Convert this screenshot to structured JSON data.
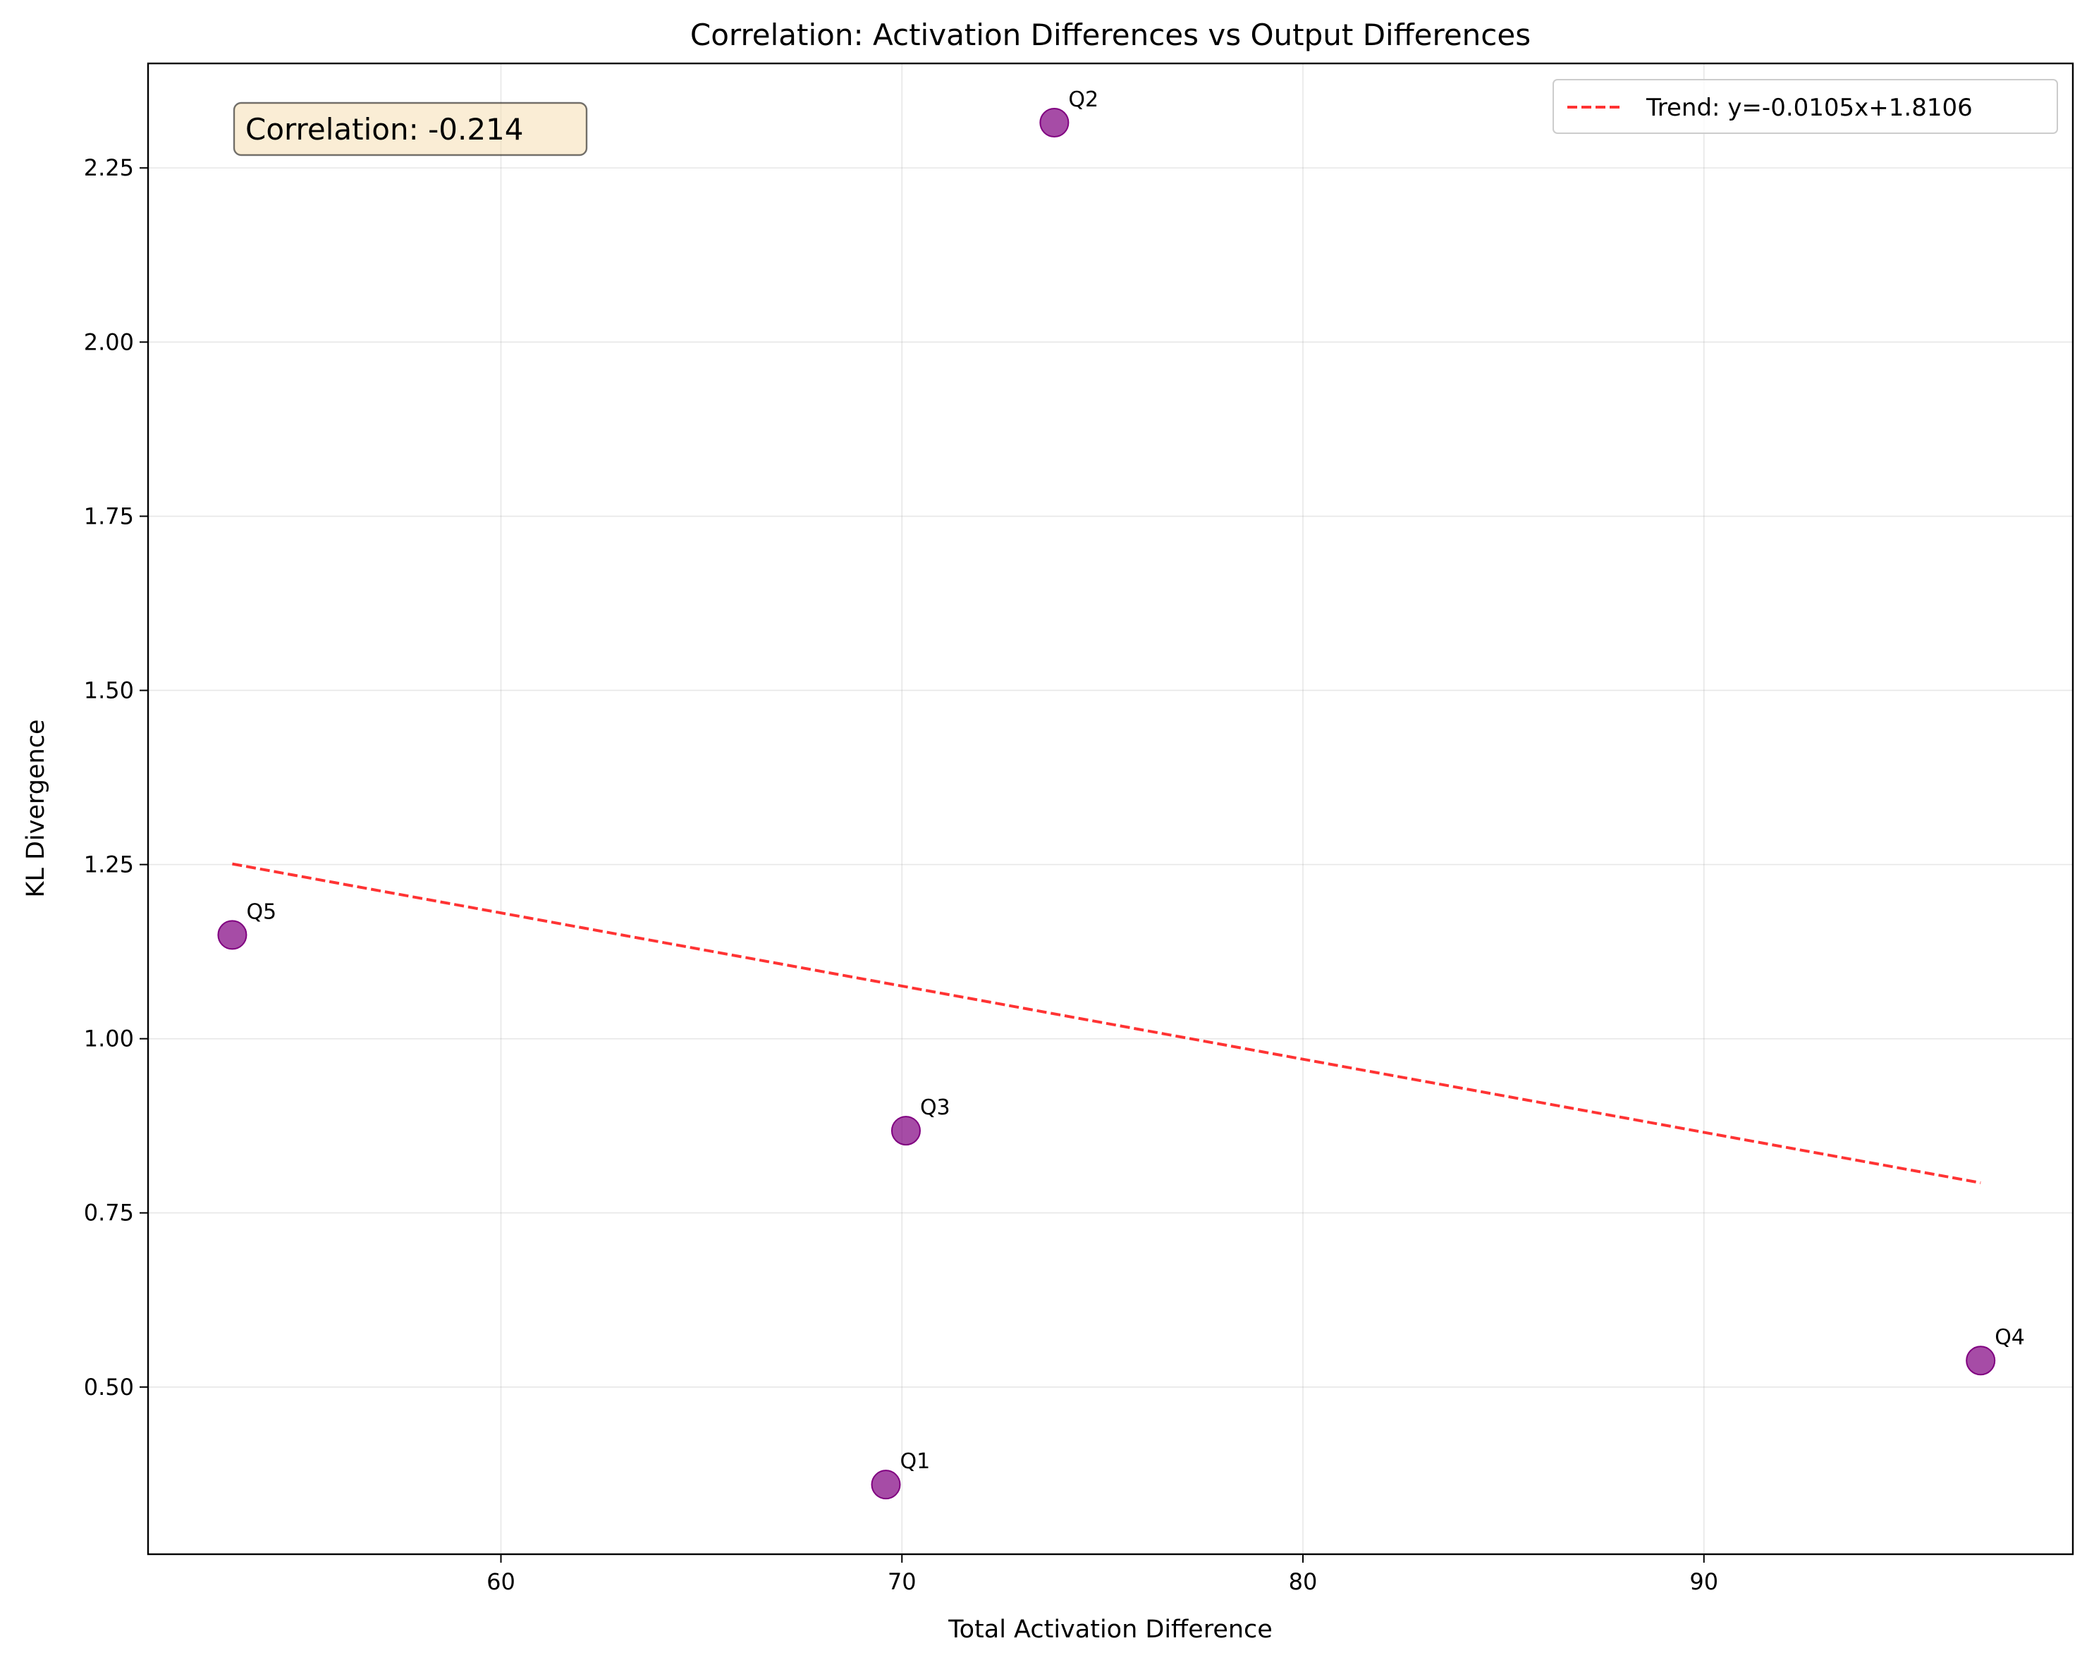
{
  "chart_data": {
    "type": "scatter",
    "title": "Correlation: Activation Differences vs Output Differences",
    "xlabel": "Total Activation Difference",
    "ylabel": "KL Divergence",
    "xlim": [
      51.2,
      99.2
    ],
    "ylim": [
      0.26,
      2.4
    ],
    "xticks": [
      60,
      70,
      80,
      90
    ],
    "yticks": [
      0.5,
      0.75,
      1.0,
      1.25,
      1.5,
      1.75,
      2.0,
      2.25
    ],
    "ytick_labels": [
      "0.50",
      "0.75",
      "1.00",
      "1.25",
      "1.50",
      "1.75",
      "2.00",
      "2.25"
    ],
    "grid": true,
    "points": [
      {
        "label": "Q1",
        "x": 69.6,
        "y": 0.36
      },
      {
        "label": "Q2",
        "x": 73.8,
        "y": 2.315
      },
      {
        "label": "Q3",
        "x": 70.1,
        "y": 0.868
      },
      {
        "label": "Q4",
        "x": 96.9,
        "y": 0.538
      },
      {
        "label": "Q5",
        "x": 53.3,
        "y": 1.149
      }
    ],
    "marker_color": "#800080",
    "trend": {
      "label": "Trend: y=-0.0105x+1.8106",
      "slope": -0.0105,
      "intercept": 1.8106,
      "x_range": [
        53.3,
        96.9
      ],
      "color": "#ff0000",
      "style": "dashed"
    },
    "annotation": {
      "text": "Correlation: -0.214",
      "placement": "top-left",
      "box_color": "#f5deb3"
    },
    "legend": {
      "placement": "top-right"
    }
  }
}
